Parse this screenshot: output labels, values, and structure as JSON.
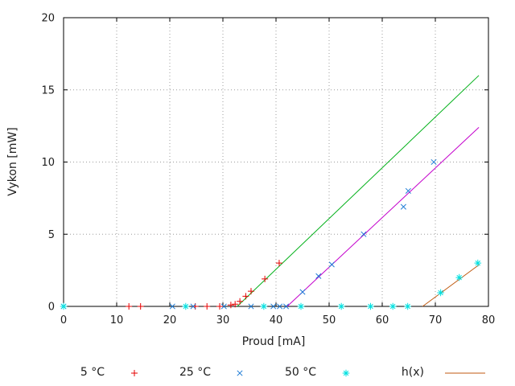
{
  "chart_data": {
    "type": "scatter",
    "title": "",
    "xlabel": "Proud [mA]",
    "ylabel": "Vykon [mW]",
    "xlim": [
      0,
      80
    ],
    "ylim": [
      0,
      20
    ],
    "xticks": [
      0,
      10,
      20,
      30,
      40,
      50,
      60,
      70,
      80
    ],
    "yticks": [
      0,
      5,
      10,
      15,
      20
    ],
    "grid": "dotted",
    "legend_position": "below-plot",
    "colors": {
      "grid": "#9c9c9c",
      "axis": "#000000",
      "series_5c": "#e60000",
      "fit_5c": "#00b018",
      "series_25c": "#1e7cd6",
      "fit_25c": "#c400cc",
      "series_50c": "#00e0e0",
      "fit_50c": "#c05a10"
    },
    "series": [
      {
        "name": "5 °C",
        "kind": "points",
        "marker": "plus",
        "color": "#e60000",
        "points": [
          [
            12.3,
            0
          ],
          [
            14.5,
            0
          ],
          [
            24.8,
            0
          ],
          [
            27,
            0
          ],
          [
            29.4,
            0
          ],
          [
            31.5,
            0.1
          ],
          [
            32.3,
            0.15
          ],
          [
            33.2,
            0.35
          ],
          [
            34.3,
            0.7
          ],
          [
            35.3,
            1.05
          ],
          [
            37.9,
            1.9
          ],
          [
            40.6,
            3.0
          ]
        ]
      },
      {
        "name": "fit 5 °C",
        "kind": "line",
        "color": "#00b018",
        "in_legend": false,
        "points": [
          [
            32.7,
            0
          ],
          [
            78.2,
            16.0
          ]
        ]
      },
      {
        "name": "25 °C",
        "kind": "points",
        "marker": "cross",
        "color": "#1e7cd6",
        "points": [
          [
            0,
            0
          ],
          [
            20.5,
            0
          ],
          [
            24.4,
            0
          ],
          [
            30.2,
            0
          ],
          [
            35.3,
            0
          ],
          [
            39.5,
            0
          ],
          [
            40.7,
            0
          ],
          [
            41.9,
            0
          ],
          [
            45,
            1.0
          ],
          [
            48,
            2.1
          ],
          [
            50.5,
            2.9
          ],
          [
            56.5,
            5.0
          ],
          [
            64,
            6.9
          ],
          [
            64.9,
            8.0
          ],
          [
            69.7,
            10.0
          ]
        ]
      },
      {
        "name": "fit 25 °C",
        "kind": "line",
        "color": "#c400cc",
        "in_legend": false,
        "points": [
          [
            42.1,
            0
          ],
          [
            78.2,
            12.4
          ]
        ]
      },
      {
        "name": "50 °C",
        "kind": "points",
        "marker": "star",
        "color": "#00e0e0",
        "points": [
          [
            0,
            0
          ],
          [
            23,
            0
          ],
          [
            37.7,
            0
          ],
          [
            44.7,
            0
          ],
          [
            52.3,
            0
          ],
          [
            57.8,
            0
          ],
          [
            62,
            0
          ],
          [
            64.8,
            0
          ],
          [
            71,
            0.95
          ],
          [
            74.5,
            2.0
          ],
          [
            78,
            3.0
          ]
        ]
      },
      {
        "name": "h(x)",
        "kind": "line",
        "color": "#c05a10",
        "in_legend": true,
        "points": [
          [
            67.6,
            0
          ],
          [
            78.3,
            2.9
          ]
        ]
      }
    ],
    "legend": [
      {
        "label": "5 °C",
        "marker": "plus",
        "color": "#e60000"
      },
      {
        "label": "25 °C",
        "marker": "cross",
        "color": "#1e7cd6"
      },
      {
        "label": "50 °C",
        "marker": "star",
        "color": "#00e0e0"
      },
      {
        "label": "h(x)",
        "marker": "line",
        "color": "#c05a10"
      }
    ]
  }
}
